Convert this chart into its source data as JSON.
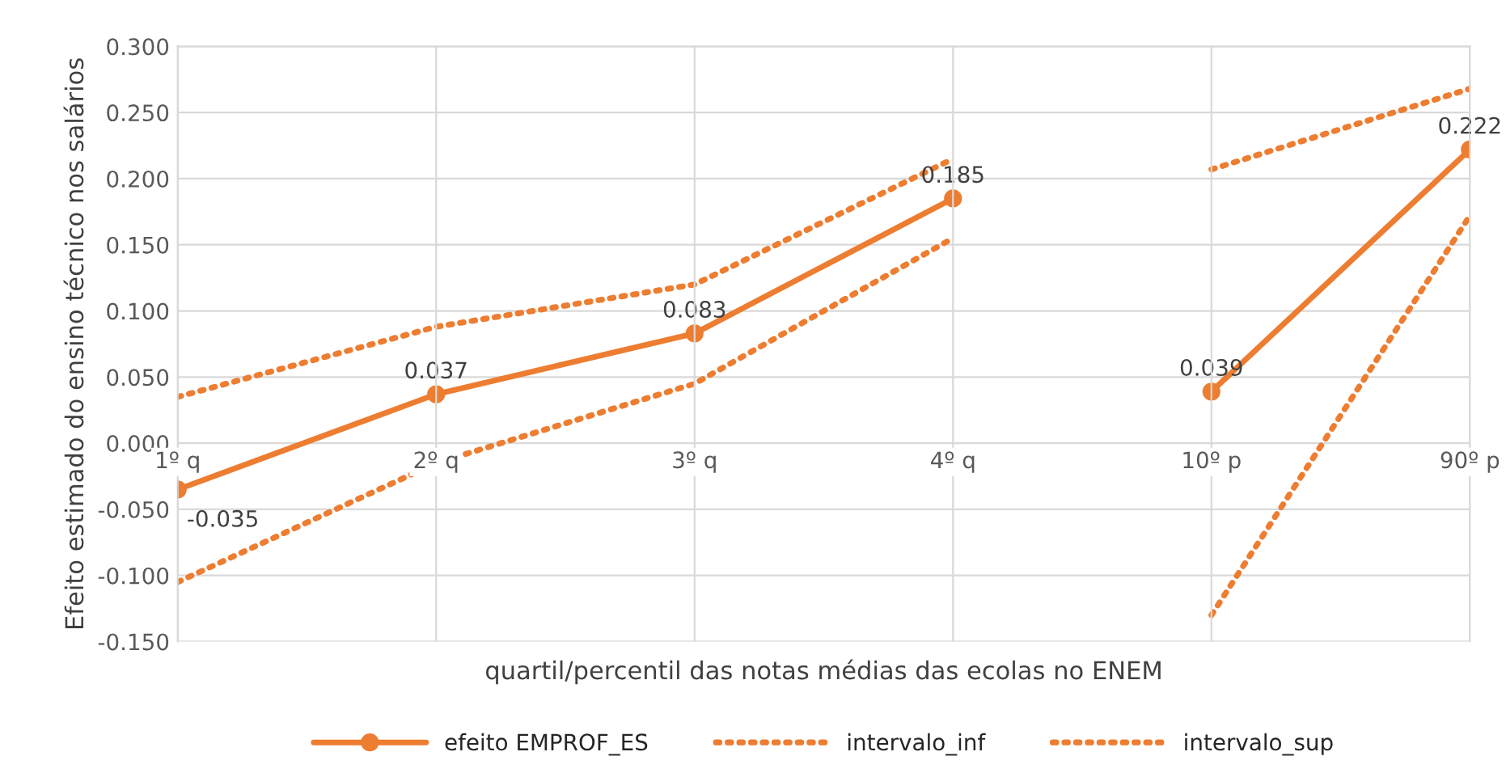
{
  "chart_data": {
    "type": "line",
    "ylabel": "Efeito estimado do ensino técnico nos salários",
    "xlabel": "quartil/percentil das notas médias das ecolas no ENEM",
    "categories": [
      "1º q",
      "2º q",
      "3º q",
      "4º q",
      "10º p",
      "90º p"
    ],
    "series": [
      {
        "name": "efeito EMPROF_ES",
        "color": "#ed7d31",
        "marker": "circle",
        "line_style": "solid",
        "values": [
          -0.035,
          0.037,
          0.083,
          0.185,
          null,
          null
        ],
        "value_labels": [
          "-0.035",
          "0.037",
          "0.083",
          "0.185",
          null,
          null
        ]
      },
      {
        "color": "#ed7d31",
        "marker": "circle",
        "line_style": "solid",
        "values": [
          null,
          null,
          null,
          null,
          0.039,
          0.222
        ],
        "value_labels": [
          null,
          null,
          null,
          null,
          "0.039",
          "0.222"
        ]
      },
      {
        "name": "intervalo_inf",
        "color": "#ed7d31",
        "marker": "none",
        "line_style": "dotted",
        "values": [
          -0.105,
          -0.015,
          0.045,
          0.155,
          null,
          null
        ]
      },
      {
        "color": "#ed7d31",
        "marker": "none",
        "line_style": "dotted",
        "values": [
          null,
          null,
          null,
          null,
          -0.13,
          0.172
        ]
      },
      {
        "name": "intervalo_sup",
        "color": "#ed7d31",
        "marker": "none",
        "line_style": "dotted",
        "values": [
          0.035,
          0.088,
          0.12,
          0.215,
          null,
          null
        ]
      },
      {
        "color": "#ed7d31",
        "marker": "none",
        "line_style": "dotted",
        "values": [
          null,
          null,
          null,
          null,
          0.207,
          0.268
        ]
      }
    ],
    "ylim": [
      -0.15,
      0.3
    ],
    "yticks": [
      {
        "value": -0.15,
        "label": "-0.150"
      },
      {
        "value": -0.1,
        "label": "-0.100"
      },
      {
        "value": -0.05,
        "label": "-0.050"
      },
      {
        "value": 0,
        "label": "0.000"
      },
      {
        "value": 0.05,
        "label": "0.050"
      },
      {
        "value": 0.1,
        "label": "0.100"
      },
      {
        "value": 0.15,
        "label": "0.150"
      },
      {
        "value": 0.2,
        "label": "0.200"
      },
      {
        "value": 0.25,
        "label": "0.250"
      },
      {
        "value": 0.3,
        "label": "0.300"
      }
    ],
    "grid": true,
    "legend": "bottom"
  }
}
